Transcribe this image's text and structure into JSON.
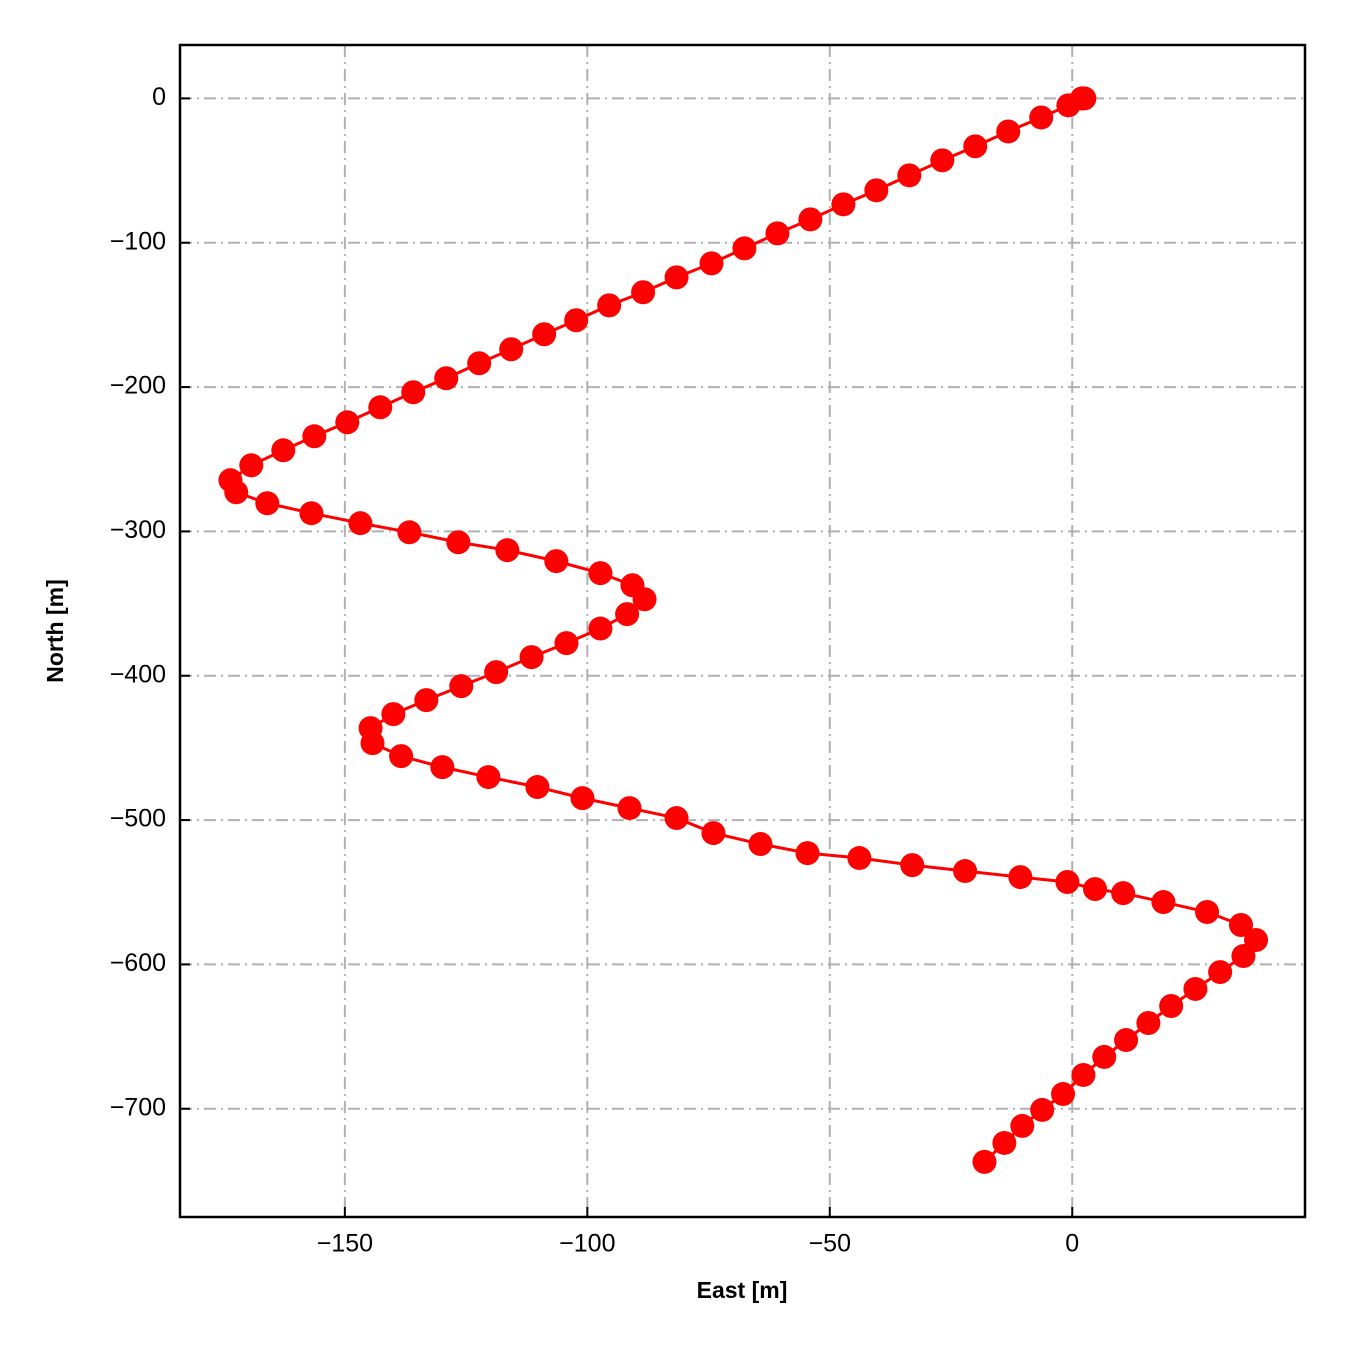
{
  "chart_data": {
    "type": "line",
    "xlabel": "East [m]",
    "ylabel": "North [m]",
    "color": "#ff0000",
    "grid": true,
    "xlim": [
      -184,
      48
    ],
    "ylim": [
      -775,
      37
    ],
    "xticks": [
      {
        "value": -150,
        "label": "−150"
      },
      {
        "value": -100,
        "label": "−100"
      },
      {
        "value": -50,
        "label": "−50"
      },
      0
    ],
    "yticks": [
      0,
      {
        "value": -100,
        "label": "−100"
      },
      {
        "value": -200,
        "label": "−200"
      },
      {
        "value": -300,
        "label": "−300"
      },
      {
        "value": -400,
        "label": "−400"
      },
      {
        "value": -500,
        "label": "−500"
      },
      {
        "value": -600,
        "label": "−600"
      },
      {
        "value": -700,
        "label": "−700"
      }
    ],
    "x": [
      2.5,
      2,
      -0.8,
      -6.4,
      -13.2,
      -20,
      -26.8,
      -33.6,
      -40.4,
      -47.2,
      -54,
      -60.8,
      -67.6,
      -74.4,
      -81.6,
      -88.5,
      -95.5,
      -102.3,
      -108.9,
      -115.7,
      -122.3,
      -129.1,
      -135.9,
      -142.7,
      -149.5,
      -156.3,
      -162.7,
      -169.3,
      -173.6,
      -172.4,
      -166,
      -156.9,
      -146.8,
      -136.7,
      -126.6,
      -116.5,
      -106.4,
      -97.3,
      -90.7,
      -88.2,
      -91.8,
      -97.3,
      -104.3,
      -111.5,
      -118.8,
      -126,
      -133.2,
      -140,
      -144.7,
      -144.3,
      -138.4,
      -129.9,
      -120.4,
      -110.3,
      -101,
      -91.3,
      -81.6,
      -74,
      -64.3,
      -54.6,
      -43.9,
      -33,
      -22.1,
      -10.7,
      -1,
      4.7,
      10.5,
      18.8,
      27.8,
      34.8,
      37.9,
      35.3,
      30.5,
      25.4,
      20.4,
      15.7,
      11.1,
      6.6,
      2.3,
      -1.9,
      -6.2,
      -10.3,
      -14,
      -18.1
    ],
    "values": [
      0,
      0,
      -4.8,
      -13.2,
      -22.9,
      -33.2,
      -42.9,
      -53.3,
      -63.7,
      -73.4,
      -83.8,
      -93.5,
      -103.9,
      -114.3,
      -124,
      -134.3,
      -143.4,
      -153.7,
      -163.4,
      -173.8,
      -183.5,
      -193.9,
      -203.6,
      -214,
      -224.4,
      -234.1,
      -243.8,
      -254.2,
      -264.5,
      -272.9,
      -280.5,
      -287.4,
      -294.3,
      -300.6,
      -307.5,
      -313,
      -320.6,
      -328.9,
      -337.3,
      -347,
      -357.3,
      -367.3,
      -377.4,
      -387.1,
      -397.5,
      -407.2,
      -416.9,
      -426.6,
      -436.3,
      -446.7,
      -455.7,
      -463.3,
      -470.2,
      -477.1,
      -484.8,
      -491.7,
      -498.6,
      -509,
      -516.6,
      -522.9,
      -526.3,
      -531.2,
      -535.3,
      -539.5,
      -542.9,
      -547.8,
      -550.6,
      -556.8,
      -563.7,
      -572.7,
      -583.1,
      -594.2,
      -605.3,
      -617,
      -628.8,
      -640.6,
      -652.4,
      -664.1,
      -676.6,
      -689.8,
      -700.8,
      -711.9,
      -723.7,
      -736.8
    ]
  }
}
